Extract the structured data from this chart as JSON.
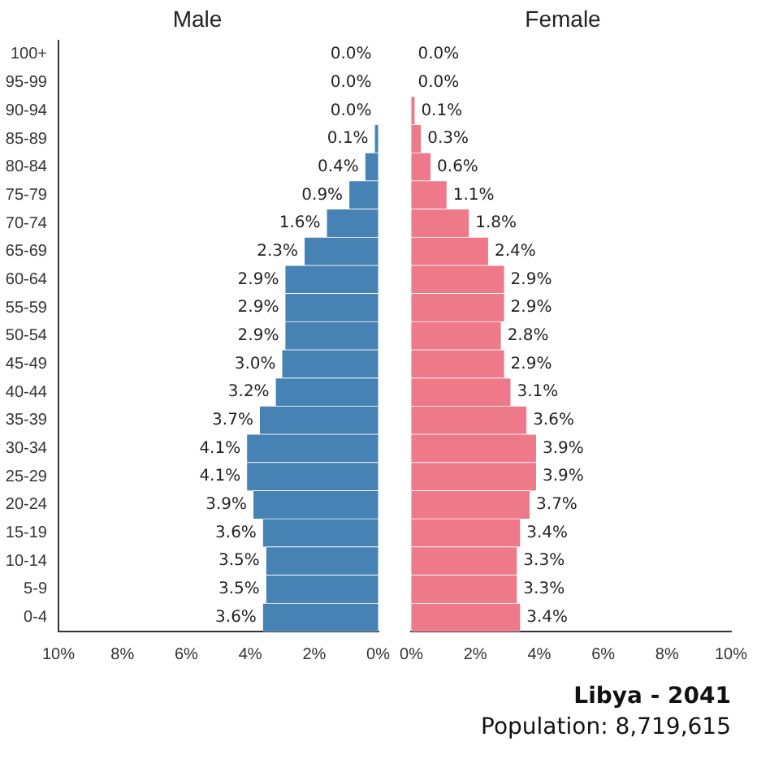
{
  "chart_data": [
    {
      "type": "bar",
      "orientation": "horizontal",
      "title": "Male",
      "categories": [
        "100+",
        "95-99",
        "90-94",
        "85-89",
        "80-84",
        "75-79",
        "70-74",
        "65-69",
        "60-64",
        "55-59",
        "50-54",
        "45-49",
        "40-44",
        "35-39",
        "30-34",
        "25-29",
        "20-24",
        "15-19",
        "10-14",
        "5-9",
        "0-4"
      ],
      "series": [
        {
          "color": "#4682b4",
          "values": [
            0.0,
            0.0,
            0.0,
            0.1,
            0.4,
            0.9,
            1.6,
            2.3,
            2.9,
            2.9,
            2.9,
            3.0,
            3.2,
            3.7,
            4.1,
            4.1,
            3.9,
            3.6,
            3.5,
            3.5,
            3.6
          ],
          "value_labels": [
            "0.0%",
            "0.0%",
            "0.0%",
            "0.1%",
            "0.4%",
            "0.9%",
            "1.6%",
            "2.3%",
            "2.9%",
            "2.9%",
            "2.9%",
            "3.0%",
            "3.2%",
            "3.7%",
            "4.1%",
            "4.1%",
            "3.9%",
            "3.6%",
            "3.5%",
            "3.5%",
            "3.6%"
          ]
        }
      ],
      "xlim": [
        10,
        0
      ],
      "xticks": [
        {
          "value": 10,
          "label": "10%"
        },
        {
          "value": 8,
          "label": "8%"
        },
        {
          "value": 6,
          "label": "6%"
        },
        {
          "value": 4,
          "label": "4%"
        },
        {
          "value": 2,
          "label": "2%"
        },
        {
          "value": 0,
          "label": "0%"
        }
      ],
      "grid": false
    },
    {
      "type": "bar",
      "orientation": "horizontal",
      "title": "Female",
      "categories": [
        null,
        null,
        null,
        null,
        null,
        null,
        null,
        null,
        null,
        null,
        null,
        null,
        null,
        null,
        null,
        null,
        null,
        null,
        null,
        null,
        null
      ],
      "series": [
        {
          "color": "#ee7989",
          "values": [
            0.0,
            0.0,
            0.1,
            0.3,
            0.6,
            1.1,
            1.8,
            2.4,
            2.9,
            2.9,
            2.8,
            2.9,
            3.1,
            3.6,
            3.9,
            3.9,
            3.7,
            3.4,
            3.3,
            3.3,
            3.4
          ],
          "value_labels": [
            "0.0%",
            "0.0%",
            "0.1%",
            "0.3%",
            "0.6%",
            "1.1%",
            "1.8%",
            "2.4%",
            "2.9%",
            "2.9%",
            "2.8%",
            "2.9%",
            "3.1%",
            "3.6%",
            "3.9%",
            "3.9%",
            "3.7%",
            "3.4%",
            "3.3%",
            "3.3%",
            "3.4%"
          ]
        }
      ],
      "xlim": [
        0,
        10
      ],
      "xticks": [
        {
          "value": 0,
          "label": "0%"
        },
        {
          "value": 2,
          "label": "2%"
        },
        {
          "value": 4,
          "label": "4%"
        },
        {
          "value": 6,
          "label": "6%"
        },
        {
          "value": 8,
          "label": "8%"
        },
        {
          "value": 10,
          "label": "10%"
        }
      ],
      "grid": false,
      "annotations": [
        "Libya - 2041",
        "Population: 8,719,615"
      ]
    }
  ]
}
